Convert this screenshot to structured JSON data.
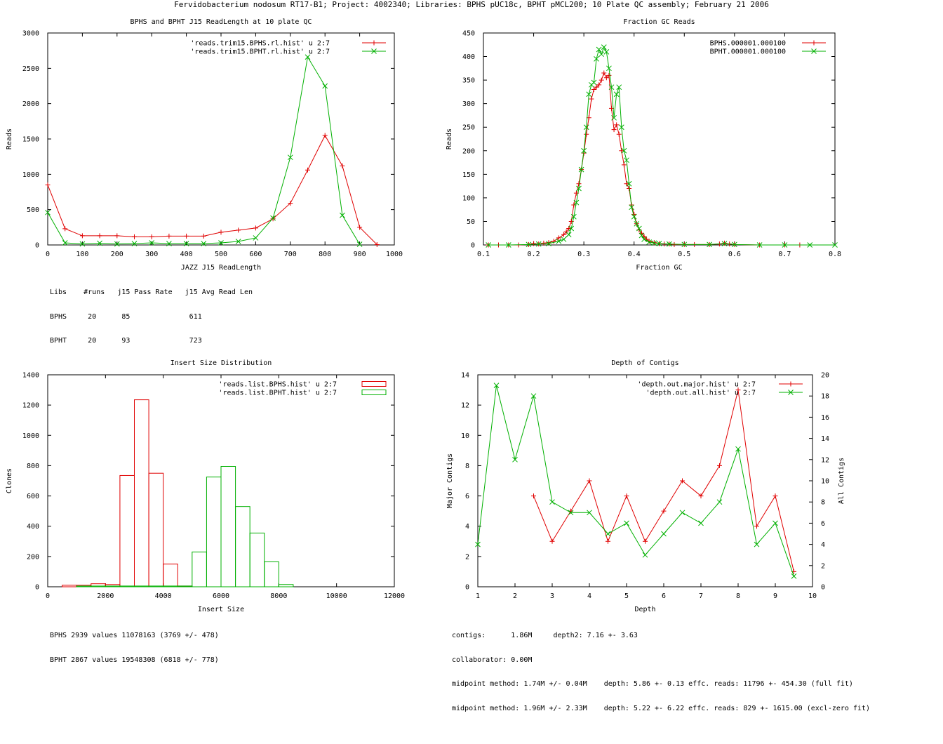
{
  "page_title": "Fervidobacterium nodosum RT17-B1; Project: 4002340; Libraries: BPHS pUC18c, BPHT pMCL200; 10 Plate QC assembly; February 21 2006",
  "colors": {
    "series1": "#e00000",
    "series2": "#00b000",
    "axis": "#000000"
  },
  "readlength_stats": {
    "header": "Libs    #runs   j15 Pass Rate   j15 Avg Read Len",
    "rows": [
      "BPHS     20      85              611",
      "BPHT     20      93              723"
    ]
  },
  "insert_stats": [
    "BPHS 2939 values 11078163 (3769 +/- 478)",
    "BPHT 2867 values 19548308 (6818 +/- 778)"
  ],
  "depth_stats": [
    "contigs:      1.86M     depth2: 7.16 +- 3.63",
    "collaborator: 0.00M",
    "midpoint method: 1.74M +/- 0.04M    depth: 5.86 +- 0.13 effc. reads: 11796 +- 454.30 (full fit)",
    "midpoint method: 1.96M +/- 2.33M    depth: 5.22 +- 6.22 effc. reads: 829 +- 1615.00 (excl-zero fit)"
  ],
  "chart_data": [
    {
      "id": "readlength",
      "type": "line",
      "title": "BPHS and BPHT J15 ReadLength at 10 plate QC",
      "xlabel": "JAZZ J15 ReadLength",
      "ylabel": "Reads",
      "xlim": [
        0,
        1000
      ],
      "ylim": [
        0,
        3000
      ],
      "xticks": [
        0,
        100,
        200,
        300,
        400,
        500,
        600,
        700,
        800,
        900,
        1000
      ],
      "yticks": [
        0,
        500,
        1000,
        1500,
        2000,
        2500,
        3000
      ],
      "legend": "top-right",
      "series": [
        {
          "name": "'reads.trim15.BPHS.rl.hist' u 2:7",
          "marker": "plus",
          "x": [
            0,
            50,
            100,
            150,
            200,
            250,
            300,
            350,
            400,
            450,
            500,
            550,
            600,
            650,
            700,
            750,
            800,
            850,
            900,
            950
          ],
          "y": [
            850,
            230,
            130,
            130,
            130,
            115,
            115,
            125,
            125,
            125,
            180,
            210,
            240,
            370,
            590,
            1060,
            1550,
            1120,
            250,
            5
          ]
        },
        {
          "name": "'reads.trim15.BPHT.rl.hist' u 2:7",
          "marker": "cross",
          "x": [
            0,
            50,
            100,
            150,
            200,
            250,
            300,
            350,
            400,
            450,
            500,
            550,
            600,
            650,
            700,
            750,
            800,
            850,
            900
          ],
          "y": [
            460,
            30,
            15,
            25,
            15,
            20,
            30,
            20,
            20,
            20,
            30,
            50,
            100,
            380,
            1240,
            2660,
            2250,
            420,
            10
          ]
        }
      ]
    },
    {
      "id": "gc",
      "type": "line",
      "title": "Fraction GC Reads",
      "xlabel": "Fraction GC",
      "ylabel": "Reads",
      "xlim": [
        0.1,
        0.8
      ],
      "ylim": [
        0,
        450
      ],
      "xticks": [
        0.1,
        0.2,
        0.3,
        0.4,
        0.5,
        0.6,
        0.7,
        0.8
      ],
      "yticks": [
        0,
        50,
        100,
        150,
        200,
        250,
        300,
        350,
        400,
        450
      ],
      "legend": "top-right",
      "series": [
        {
          "name": "BPHS.000001.000100",
          "marker": "plus",
          "x": [
            0.11,
            0.13,
            0.15,
            0.17,
            0.19,
            0.2,
            0.21,
            0.22,
            0.23,
            0.24,
            0.25,
            0.26,
            0.265,
            0.27,
            0.275,
            0.28,
            0.285,
            0.29,
            0.295,
            0.3,
            0.305,
            0.31,
            0.315,
            0.32,
            0.325,
            0.33,
            0.335,
            0.34,
            0.345,
            0.35,
            0.355,
            0.36,
            0.365,
            0.37,
            0.375,
            0.38,
            0.385,
            0.39,
            0.395,
            0.4,
            0.405,
            0.41,
            0.415,
            0.42,
            0.425,
            0.43,
            0.44,
            0.45,
            0.46,
            0.47,
            0.48,
            0.5,
            0.52,
            0.55,
            0.57,
            0.58,
            0.59,
            0.6,
            0.65,
            0.7,
            0.73
          ],
          "y": [
            0,
            0,
            0,
            0,
            1,
            3,
            2,
            4,
            5,
            8,
            15,
            22,
            28,
            35,
            50,
            85,
            110,
            130,
            160,
            195,
            235,
            270,
            310,
            330,
            335,
            340,
            350,
            365,
            355,
            360,
            290,
            245,
            255,
            235,
            200,
            170,
            130,
            120,
            85,
            65,
            45,
            32,
            25,
            18,
            12,
            8,
            5,
            3,
            2,
            2,
            1,
            1,
            1,
            1,
            2,
            4,
            2,
            1,
            0,
            0,
            0
          ]
        },
        {
          "name": "BPHT.000001.000100",
          "marker": "cross",
          "x": [
            0.11,
            0.15,
            0.19,
            0.21,
            0.23,
            0.25,
            0.26,
            0.27,
            0.275,
            0.28,
            0.285,
            0.29,
            0.295,
            0.3,
            0.305,
            0.31,
            0.315,
            0.32,
            0.325,
            0.33,
            0.335,
            0.34,
            0.345,
            0.35,
            0.355,
            0.36,
            0.365,
            0.37,
            0.375,
            0.38,
            0.385,
            0.39,
            0.395,
            0.4,
            0.405,
            0.41,
            0.415,
            0.42,
            0.43,
            0.44,
            0.45,
            0.47,
            0.5,
            0.55,
            0.58,
            0.6,
            0.65,
            0.7,
            0.75,
            0.8
          ],
          "y": [
            0,
            0,
            1,
            2,
            3,
            8,
            12,
            22,
            35,
            60,
            90,
            120,
            160,
            200,
            250,
            320,
            340,
            345,
            395,
            415,
            405,
            420,
            410,
            375,
            335,
            270,
            320,
            335,
            250,
            200,
            180,
            130,
            80,
            60,
            45,
            35,
            20,
            12,
            6,
            4,
            3,
            2,
            1,
            1,
            3,
            1,
            0,
            0,
            0,
            0
          ]
        }
      ]
    },
    {
      "id": "insert",
      "type": "bar",
      "title": "Insert Size Distribution",
      "xlabel": "Insert Size",
      "ylabel": "Clones",
      "xlim": [
        0,
        12000
      ],
      "ylim": [
        0,
        1400
      ],
      "xticks": [
        0,
        2000,
        4000,
        6000,
        8000,
        10000,
        12000
      ],
      "yticks": [
        0,
        200,
        400,
        600,
        800,
        1000,
        1200,
        1400
      ],
      "legend": "top-right",
      "bin_width": 500,
      "series": [
        {
          "name": "'reads.list.BPHS.hist' u 2:7",
          "bins": [
            750,
            1250,
            1750,
            2250,
            2750,
            3250,
            3750,
            4250,
            4750
          ],
          "values": [
            10,
            10,
            20,
            15,
            735,
            1235,
            750,
            150,
            5
          ]
        },
        {
          "name": "'reads.list.BPHT.hist' u 2:7",
          "bins": [
            1250,
            1750,
            2250,
            2750,
            3250,
            3750,
            4250,
            4750,
            5250,
            5750,
            6250,
            6750,
            7250,
            7750,
            8250
          ],
          "values": [
            5,
            5,
            5,
            5,
            5,
            5,
            5,
            5,
            230,
            725,
            795,
            530,
            355,
            165,
            15
          ]
        }
      ]
    },
    {
      "id": "depth",
      "type": "line",
      "title": "Depth of Contigs",
      "xlabel": "Depth",
      "ylabel": "Major Contigs",
      "y2label": "All Contigs",
      "xlim": [
        1,
        10
      ],
      "ylim": [
        0,
        14
      ],
      "y2lim": [
        0,
        20
      ],
      "xticks": [
        1,
        2,
        3,
        4,
        5,
        6,
        7,
        8,
        9,
        10
      ],
      "yticks": [
        0,
        2,
        4,
        6,
        8,
        10,
        12,
        14
      ],
      "y2ticks": [
        0,
        2,
        4,
        6,
        8,
        10,
        12,
        14,
        16,
        18,
        20
      ],
      "legend": "top-right",
      "series": [
        {
          "name": "'depth.out.major.hist' u 2:7",
          "marker": "plus",
          "axis": "y1",
          "x": [
            2.5,
            3,
            3.5,
            4,
            4.5,
            5,
            5.5,
            6,
            6.5,
            7,
            7.5,
            8,
            8.5,
            9,
            9.5
          ],
          "y": [
            6,
            3,
            5,
            7,
            3,
            6,
            3,
            5,
            7,
            6,
            8,
            13,
            4,
            6,
            1
          ]
        },
        {
          "name": "'depth.out.all.hist' u 2:7",
          "marker": "cross",
          "axis": "y2",
          "x": [
            1,
            1.5,
            2,
            2.5,
            3,
            3.5,
            4,
            4.5,
            5,
            5.5,
            6,
            6.5,
            7,
            7.5,
            8,
            8.5,
            9,
            9.5
          ],
          "y": [
            4,
            19,
            12,
            18,
            8,
            7,
            7,
            5,
            6,
            3,
            5,
            7,
            6,
            8,
            13,
            4,
            6,
            1
          ]
        }
      ]
    }
  ]
}
